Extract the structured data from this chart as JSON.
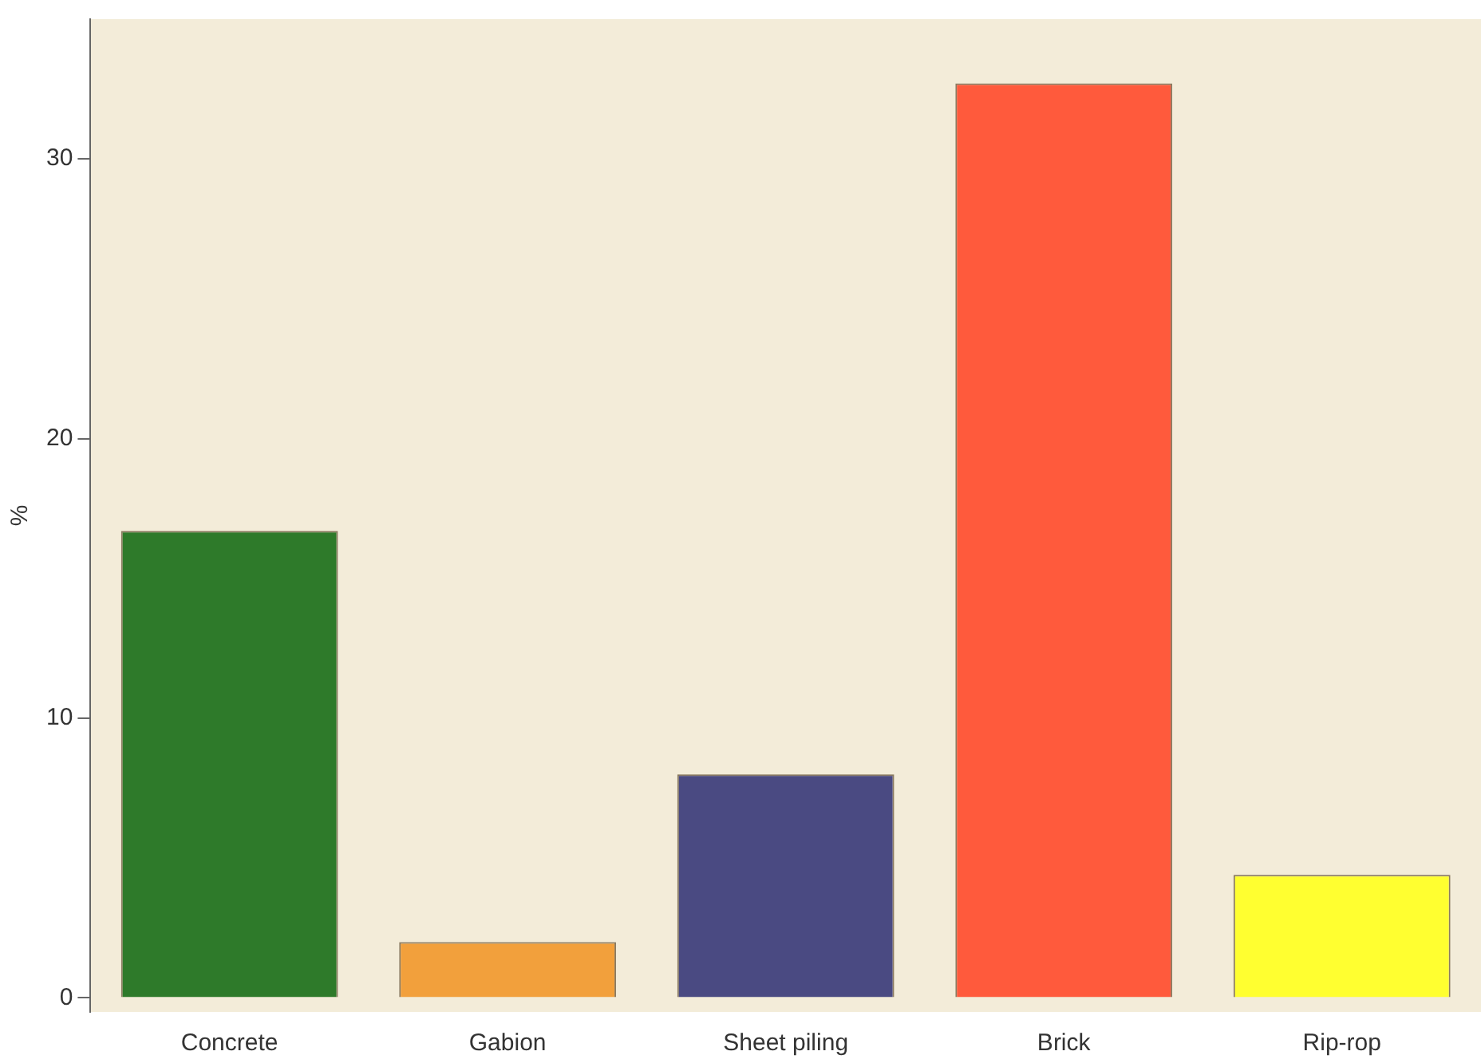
{
  "chart_data": {
    "type": "bar",
    "ylabel": "%",
    "categories": [
      "Concrete",
      "Gabion",
      "Sheet piling",
      "Brick",
      "Rip-rop"
    ],
    "values": [
      16.7,
      2.0,
      8.0,
      32.7,
      4.4
    ],
    "colors": [
      "#2e7a2a",
      "#f2a03c",
      "#4a4a82",
      "#ff5a3c",
      "#ffff30"
    ],
    "ylim": [
      -0.5,
      35
    ],
    "yticks": [
      0,
      10,
      20,
      30
    ],
    "grid": false,
    "legend": false
  }
}
